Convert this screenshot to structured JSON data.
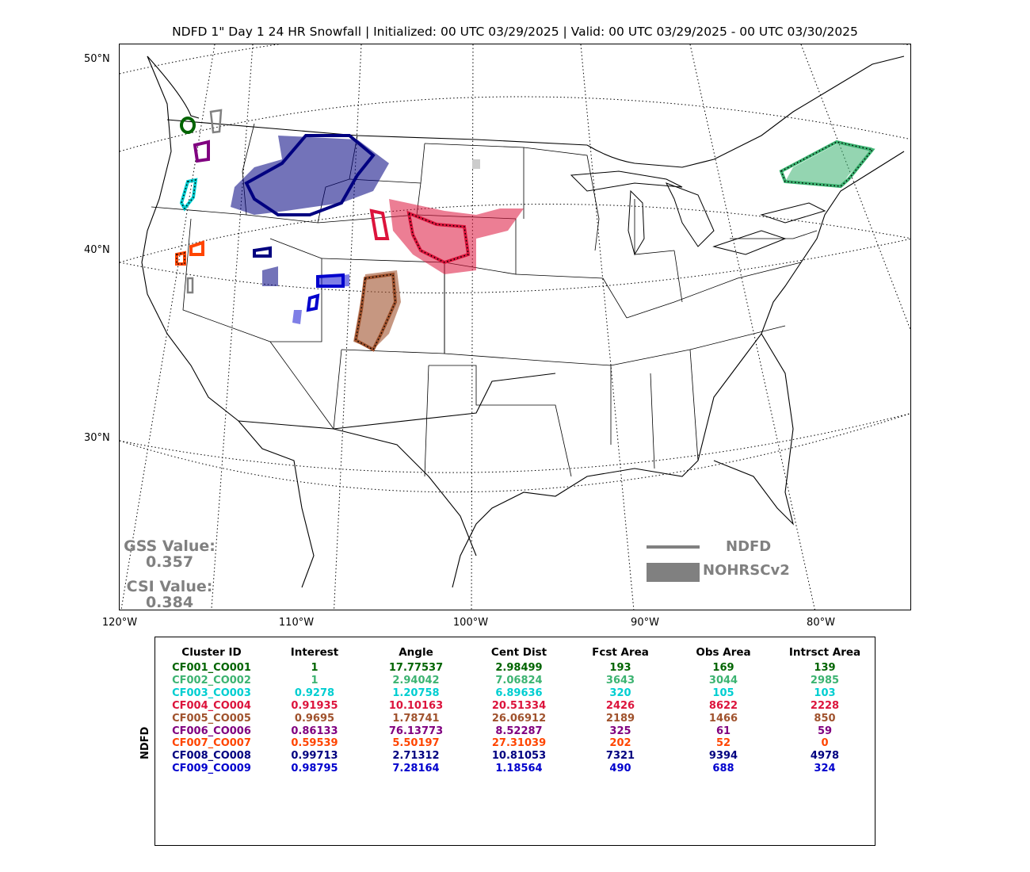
{
  "title": "NDFD 1\" Day 1 24 HR Snowfall | Initialized: 00 UTC 03/29/2025 | Valid: 00 UTC 03/29/2025 - 00 UTC 03/30/2025",
  "map": {
    "lat_labels": [
      "50°N",
      "40°N",
      "30°N"
    ],
    "lon_labels": [
      "120°W",
      "110°W",
      "100°W",
      "90°W",
      "80°W"
    ],
    "stats": {
      "gss_label": "GSS Value:",
      "gss_value": "0.357",
      "csi_label": "CSI Value:",
      "csi_value": "0.384"
    },
    "legend": {
      "line_label": "NDFD",
      "fill_label": "NOHRSCv2",
      "color": "#808080"
    }
  },
  "table": {
    "side_label": "NDFD",
    "headers": [
      "Cluster ID",
      "Interest",
      "Angle",
      "Cent Dist",
      "Fcst Area",
      "Obs Area",
      "Intrsct Area"
    ],
    "rows": [
      {
        "color": "#006400",
        "cells": [
          "CF001_CO001",
          "1",
          "17.77537",
          "2.98499",
          "193",
          "169",
          "139"
        ]
      },
      {
        "color": "#3cb371",
        "cells": [
          "CF002_CO002",
          "1",
          "2.94042",
          "7.06824",
          "3643",
          "3044",
          "2985"
        ]
      },
      {
        "color": "#00ced1",
        "cells": [
          "CF003_CO003",
          "0.9278",
          "1.20758",
          "6.89636",
          "320",
          "105",
          "103"
        ]
      },
      {
        "color": "#dc143c",
        "cells": [
          "CF004_CO004",
          "0.91935",
          "10.10163",
          "20.51334",
          "2426",
          "8622",
          "2228"
        ]
      },
      {
        "color": "#a0522d",
        "cells": [
          "CF005_CO005",
          "0.9695",
          "1.78741",
          "26.06912",
          "2189",
          "1466",
          "850"
        ]
      },
      {
        "color": "#800080",
        "cells": [
          "CF006_CO006",
          "0.86133",
          "76.13773",
          "8.52287",
          "325",
          "61",
          "59"
        ]
      },
      {
        "color": "#ff4500",
        "cells": [
          "CF007_CO007",
          "0.59539",
          "5.50197",
          "27.31039",
          "202",
          "52",
          "0"
        ]
      },
      {
        "color": "#000080",
        "cells": [
          "CF008_CO008",
          "0.99713",
          "2.71312",
          "10.81053",
          "7321",
          "9394",
          "4978"
        ]
      },
      {
        "color": "#0000cd",
        "cells": [
          "CF009_CO009",
          "0.98795",
          "7.28164",
          "1.18564",
          "490",
          "688",
          "324"
        ]
      }
    ]
  }
}
